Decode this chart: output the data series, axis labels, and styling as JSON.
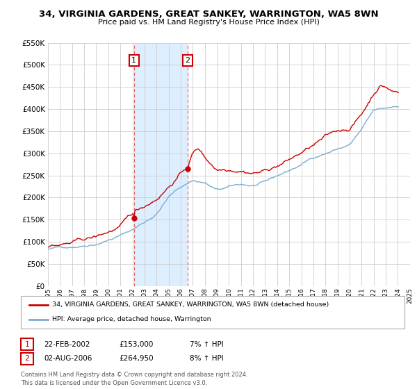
{
  "title": "34, VIRGINIA GARDENS, GREAT SANKEY, WARRINGTON, WA5 8WN",
  "subtitle": "Price paid vs. HM Land Registry's House Price Index (HPI)",
  "legend_line1": "34, VIRGINIA GARDENS, GREAT SANKEY, WARRINGTON, WA5 8WN (detached house)",
  "legend_line2": "HPI: Average price, detached house, Warrington",
  "footer": "Contains HM Land Registry data © Crown copyright and database right 2024.\nThis data is licensed under the Open Government Licence v3.0.",
  "sale1_date": "22-FEB-2002",
  "sale1_price": 153000,
  "sale1_label": "£153,000",
  "sale1_hpi": "7% ↑ HPI",
  "sale2_date": "02-AUG-2006",
  "sale2_price": 264950,
  "sale2_label": "£264,950",
  "sale2_hpi": "8% ↑ HPI",
  "sale1_x": 2002.13,
  "sale2_x": 2006.58,
  "y_min": 0,
  "y_max": 550000,
  "x_min": 1995,
  "x_max": 2025,
  "property_color": "#cc0000",
  "hpi_color": "#7aadcf",
  "shading_color": "#ddeeff",
  "grid_color": "#cccccc",
  "background_color": "#ffffff",
  "label_box_color": "#cc0000"
}
